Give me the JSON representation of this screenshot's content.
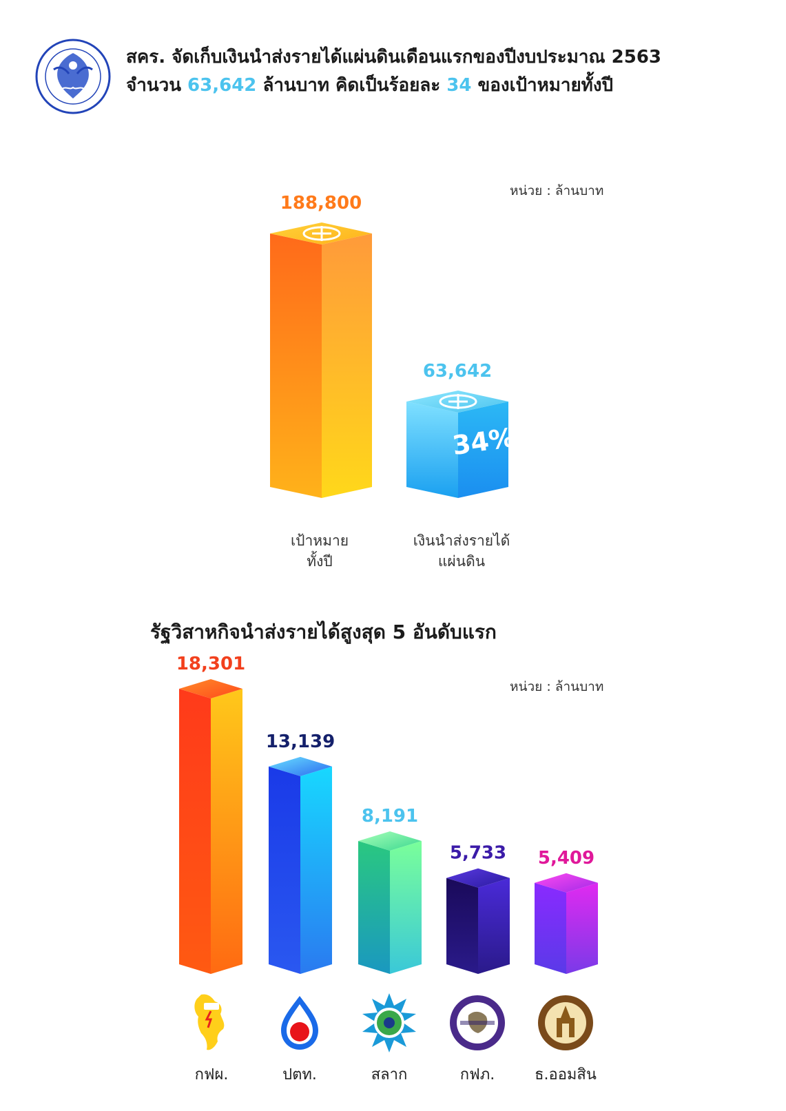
{
  "header": {
    "line1": "สคร. จัดเก็บเงินนำส่งรายได้แผ่นดินเดือนแรกของปีงบประมาณ 2563",
    "line2_prefix": "จำนวน ",
    "line2_amount": "63,642",
    "line2_mid": " ล้านบาท คิดเป็นร้อยละ ",
    "line2_percent": "34",
    "line2_suffix": " ของเป้าหมายทั้งปี"
  },
  "unit_label": "หน่วย : ล้านบาท",
  "section2_title": "รัฐวิสาหกิจนำส่งรายได้สูงสุด 5 อันดับแรก",
  "colors": {
    "orange": "#ff7a1a",
    "blue": "#4cc3ee",
    "red": "#f2401d",
    "navy": "#14206b",
    "purple": "#3b1ba8",
    "magenta": "#e0189a"
  },
  "chart_data": [
    {
      "type": "bar",
      "categories": [
        "เป้าหมาย\nทั้งปี",
        "เงินนำส่งรายได้\nแผ่นดิน"
      ],
      "values": [
        188800,
        63642
      ],
      "data_labels": [
        "188,800",
        "63,642"
      ],
      "annotation": "34%",
      "bar_icon": "baht-icon",
      "ylim": [
        0,
        188800
      ]
    },
    {
      "type": "bar",
      "categories": [
        "กฟผ.",
        "ปตท.",
        "สลาก",
        "กฟภ.",
        "ธ.ออมสิน"
      ],
      "values": [
        18301,
        13139,
        8191,
        5733,
        5409
      ],
      "data_labels": [
        "18,301",
        "13,139",
        "8,191",
        "5,733",
        "5,409"
      ],
      "icons": [
        "egat-logo-icon",
        "ptt-logo-icon",
        "lottery-logo-icon",
        "pea-logo-icon",
        "gsb-logo-icon"
      ],
      "ylim": [
        0,
        18301
      ]
    }
  ]
}
